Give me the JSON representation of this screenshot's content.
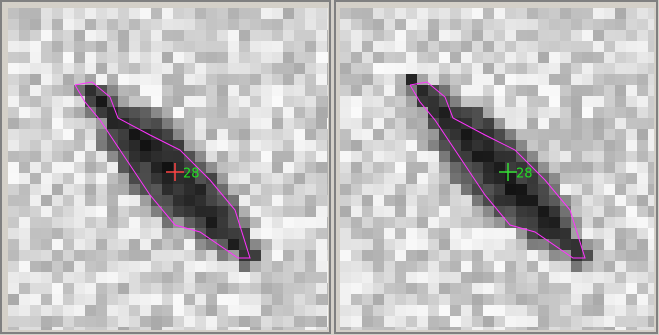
{
  "panels": [
    {
      "label": "28"
    },
    {
      "label": "28"
    }
  ]
}
